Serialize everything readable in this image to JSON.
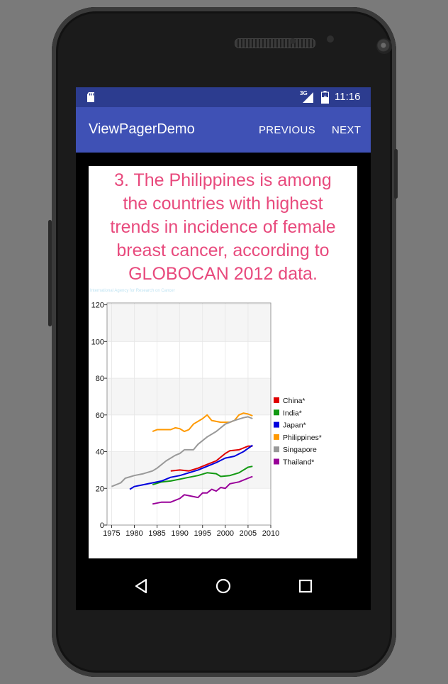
{
  "device": {
    "name": "android-phone"
  },
  "status_bar": {
    "network": "3G",
    "time": "11:16",
    "icons": [
      "sd-card-icon",
      "signal-icon",
      "battery-icon"
    ]
  },
  "app_bar": {
    "title": "ViewPagerDemo",
    "previous_label": "PREVIOUS",
    "next_label": "NEXT"
  },
  "page": {
    "heading": "3. The Philippines is among the countries with highest trends in incidence of female breast cancer, according to GLOBOCAN 2012 data.",
    "heading_lines": [
      "3. The Philippines is among",
      "the countries with highest",
      "trends in incidence of female",
      "breast cancer, according to",
      "GLOBOCAN 2012 data."
    ],
    "faint_caption": "International Agency for Research on Cancer"
  },
  "chart_data": {
    "type": "line",
    "title": "",
    "xlabel": "",
    "ylabel": "",
    "xlim": [
      1974,
      2010
    ],
    "ylim": [
      0,
      121
    ],
    "xticks": [
      1975,
      1980,
      1985,
      1990,
      1995,
      2000,
      2005,
      2010
    ],
    "yticks": [
      0,
      20,
      40,
      60,
      80,
      100,
      120
    ],
    "grid": true,
    "legend_position": "right",
    "series": [
      {
        "name": "China*",
        "color": "#e00000",
        "points": [
          [
            1988,
            29.5
          ],
          [
            1990,
            30
          ],
          [
            1992,
            29.5
          ],
          [
            1994,
            31
          ],
          [
            1996,
            33
          ],
          [
            1998,
            35
          ],
          [
            2000,
            39
          ],
          [
            2001,
            40.5
          ],
          [
            2003,
            41
          ],
          [
            2005,
            43
          ],
          [
            2006,
            43
          ]
        ]
      },
      {
        "name": "India*",
        "color": "#119911",
        "points": [
          [
            1984,
            22
          ],
          [
            1986,
            23.5
          ],
          [
            1988,
            24
          ],
          [
            1990,
            25
          ],
          [
            1992,
            26
          ],
          [
            1994,
            27
          ],
          [
            1996,
            28.5
          ],
          [
            1998,
            28
          ],
          [
            1999,
            26.5
          ],
          [
            2001,
            27
          ],
          [
            2003,
            28.5
          ],
          [
            2005,
            31.5
          ],
          [
            2006,
            32
          ]
        ]
      },
      {
        "name": "Japan*",
        "color": "#0000dd",
        "points": [
          [
            1979,
            19.5
          ],
          [
            1980,
            21
          ],
          [
            1982,
            22
          ],
          [
            1984,
            23
          ],
          [
            1986,
            24
          ],
          [
            1988,
            26
          ],
          [
            1990,
            27
          ],
          [
            1992,
            28.5
          ],
          [
            1994,
            30
          ],
          [
            1996,
            32
          ],
          [
            1998,
            34
          ],
          [
            2000,
            36.5
          ],
          [
            2002,
            37.5
          ],
          [
            2004,
            40
          ],
          [
            2006,
            43.5
          ]
        ]
      },
      {
        "name": "Philippines*",
        "color": "#ff9900",
        "points": [
          [
            1984,
            51
          ],
          [
            1985,
            52
          ],
          [
            1988,
            52
          ],
          [
            1989,
            53
          ],
          [
            1990,
            52.5
          ],
          [
            1991,
            51
          ],
          [
            1992,
            52
          ],
          [
            1993,
            55
          ],
          [
            1995,
            58
          ],
          [
            1996,
            60
          ],
          [
            1997,
            57
          ],
          [
            1999,
            56
          ],
          [
            2001,
            56
          ],
          [
            2002,
            57
          ],
          [
            2003,
            60
          ],
          [
            2004,
            61
          ],
          [
            2005,
            60.5
          ],
          [
            2006,
            59.5
          ]
        ]
      },
      {
        "name": "Singapore",
        "color": "#999999",
        "points": [
          [
            1975,
            21
          ],
          [
            1977,
            23
          ],
          [
            1978,
            25.5
          ],
          [
            1980,
            27
          ],
          [
            1982,
            28
          ],
          [
            1984,
            29.5
          ],
          [
            1985,
            31
          ],
          [
            1987,
            35
          ],
          [
            1989,
            38
          ],
          [
            1990,
            39
          ],
          [
            1991,
            41
          ],
          [
            1993,
            41
          ],
          [
            1994,
            44
          ],
          [
            1996,
            48
          ],
          [
            1998,
            51
          ],
          [
            2000,
            55
          ],
          [
            2002,
            57
          ],
          [
            2004,
            58.5
          ],
          [
            2005,
            59
          ],
          [
            2006,
            58
          ]
        ]
      },
      {
        "name": "Thailand*",
        "color": "#990099",
        "points": [
          [
            1984,
            11.5
          ],
          [
            1986,
            12.5
          ],
          [
            1988,
            12.5
          ],
          [
            1990,
            14.5
          ],
          [
            1991,
            16.5
          ],
          [
            1993,
            15.5
          ],
          [
            1994,
            15
          ],
          [
            1995,
            17.5
          ],
          [
            1996,
            17.5
          ],
          [
            1997,
            19.5
          ],
          [
            1998,
            18.5
          ],
          [
            1999,
            20.5
          ],
          [
            2000,
            20
          ],
          [
            2001,
            22.5
          ],
          [
            2003,
            23.5
          ],
          [
            2005,
            25.5
          ],
          [
            2006,
            26.5
          ]
        ]
      }
    ]
  }
}
